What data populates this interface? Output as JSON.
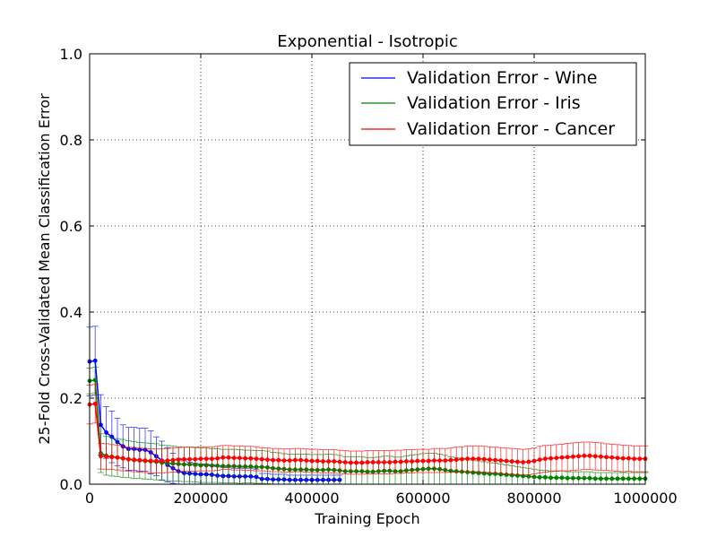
{
  "chart_data": {
    "type": "line",
    "title": "Exponential - Isotropic",
    "xlabel": "Training Epoch",
    "ylabel": "25-Fold Cross-Validated Mean Classification Error",
    "xlim": [
      0,
      1000000
    ],
    "ylim": [
      0.0,
      1.0
    ],
    "x_ticks": [
      "0",
      "200000",
      "400000",
      "600000",
      "800000",
      "1000000"
    ],
    "y_ticks": [
      "0.0",
      "0.2",
      "0.4",
      "0.6",
      "0.8",
      "1.0"
    ],
    "grid": true,
    "grid_style": "dotted",
    "legend_position": "top-right",
    "series": [
      {
        "name": "Validation Error - Wine",
        "color": "#0000ff",
        "x": [
          0,
          10000,
          20000,
          30000,
          40000,
          50000,
          60000,
          70000,
          80000,
          90000,
          100000,
          110000,
          120000,
          130000,
          140000,
          150000,
          160000,
          170000,
          180000,
          190000,
          200000,
          210000,
          220000,
          230000,
          240000,
          250000,
          260000,
          270000,
          280000,
          290000,
          300000,
          310000,
          320000,
          330000,
          340000,
          350000,
          360000,
          370000,
          380000,
          390000,
          400000,
          410000,
          420000,
          430000,
          440000,
          450000
        ],
        "y": [
          0.285,
          0.287,
          0.138,
          0.12,
          0.11,
          0.098,
          0.088,
          0.082,
          0.082,
          0.08,
          0.08,
          0.074,
          0.065,
          0.055,
          0.045,
          0.037,
          0.03,
          0.026,
          0.025,
          0.024,
          0.023,
          0.023,
          0.022,
          0.02,
          0.019,
          0.019,
          0.018,
          0.018,
          0.018,
          0.018,
          0.017,
          0.012,
          0.012,
          0.011,
          0.011,
          0.011,
          0.01,
          0.01,
          0.01,
          0.01,
          0.01,
          0.01,
          0.01,
          0.01,
          0.01,
          0.01
        ],
        "err": [
          0.08,
          0.08,
          0.07,
          0.06,
          0.06,
          0.055,
          0.05,
          0.05,
          0.05,
          0.05,
          0.05,
          0.05,
          0.045,
          0.045,
          0.04,
          0.035,
          0.03,
          0.028,
          0.026,
          0.025,
          0.024,
          0.024,
          0.023,
          0.021,
          0.02,
          0.02,
          0.019,
          0.019,
          0.019,
          0.019,
          0.018,
          0.013,
          0.013,
          0.012,
          0.012,
          0.012,
          0.011,
          0.011,
          0.011,
          0.011,
          0.011,
          0.011,
          0.011,
          0.011,
          0.011,
          0.011
        ]
      },
      {
        "name": "Validation Error - Iris",
        "color": "#008000",
        "x": [
          0,
          10000,
          20000,
          30000,
          40000,
          50000,
          60000,
          70000,
          80000,
          90000,
          100000,
          110000,
          120000,
          130000,
          140000,
          150000,
          160000,
          170000,
          180000,
          190000,
          200000,
          210000,
          220000,
          230000,
          240000,
          250000,
          260000,
          270000,
          280000,
          290000,
          300000,
          310000,
          320000,
          330000,
          340000,
          350000,
          360000,
          370000,
          380000,
          390000,
          400000,
          410000,
          420000,
          430000,
          440000,
          450000,
          460000,
          470000,
          480000,
          490000,
          500000,
          510000,
          520000,
          530000,
          540000,
          550000,
          560000,
          570000,
          580000,
          590000,
          600000,
          610000,
          620000,
          630000,
          640000,
          650000,
          660000,
          670000,
          680000,
          690000,
          700000,
          710000,
          720000,
          730000,
          740000,
          750000,
          760000,
          770000,
          780000,
          790000,
          800000,
          810000,
          820000,
          830000,
          840000,
          850000,
          860000,
          870000,
          880000,
          890000,
          900000,
          910000,
          920000,
          930000,
          940000,
          950000,
          960000,
          970000,
          980000,
          990000,
          1000000
        ],
        "y": [
          0.24,
          0.242,
          0.072,
          0.066,
          0.064,
          0.062,
          0.06,
          0.058,
          0.056,
          0.055,
          0.054,
          0.053,
          0.052,
          0.05,
          0.049,
          0.048,
          0.047,
          0.046,
          0.046,
          0.045,
          0.044,
          0.044,
          0.043,
          0.043,
          0.042,
          0.042,
          0.042,
          0.041,
          0.041,
          0.041,
          0.04,
          0.04,
          0.039,
          0.037,
          0.036,
          0.035,
          0.034,
          0.034,
          0.034,
          0.034,
          0.033,
          0.033,
          0.033,
          0.034,
          0.033,
          0.032,
          0.03,
          0.03,
          0.03,
          0.03,
          0.029,
          0.029,
          0.03,
          0.031,
          0.031,
          0.03,
          0.03,
          0.032,
          0.033,
          0.034,
          0.035,
          0.036,
          0.036,
          0.035,
          0.033,
          0.031,
          0.03,
          0.029,
          0.028,
          0.027,
          0.026,
          0.025,
          0.024,
          0.024,
          0.023,
          0.022,
          0.021,
          0.02,
          0.019,
          0.018,
          0.017,
          0.016,
          0.016,
          0.015,
          0.015,
          0.015,
          0.014,
          0.014,
          0.014,
          0.014,
          0.014,
          0.013,
          0.013,
          0.013,
          0.013,
          0.013,
          0.013,
          0.013,
          0.013,
          0.013,
          0.013
        ],
        "err": [
          0.03,
          0.03,
          0.045,
          0.045,
          0.045,
          0.044,
          0.044,
          0.043,
          0.043,
          0.042,
          0.042,
          0.042,
          0.042,
          0.041,
          0.041,
          0.041,
          0.04,
          0.04,
          0.04,
          0.04,
          0.04,
          0.04,
          0.039,
          0.039,
          0.039,
          0.039,
          0.039,
          0.039,
          0.038,
          0.038,
          0.038,
          0.038,
          0.038,
          0.037,
          0.037,
          0.036,
          0.036,
          0.036,
          0.036,
          0.036,
          0.036,
          0.036,
          0.036,
          0.036,
          0.036,
          0.035,
          0.034,
          0.034,
          0.034,
          0.034,
          0.033,
          0.033,
          0.033,
          0.034,
          0.034,
          0.033,
          0.033,
          0.034,
          0.035,
          0.035,
          0.036,
          0.036,
          0.036,
          0.035,
          0.034,
          0.033,
          0.032,
          0.031,
          0.03,
          0.029,
          0.028,
          0.027,
          0.026,
          0.025,
          0.024,
          0.023,
          0.022,
          0.021,
          0.02,
          0.019,
          0.018,
          0.017,
          0.016,
          0.016,
          0.016,
          0.016,
          0.015,
          0.015,
          0.015,
          0.015,
          0.015,
          0.014,
          0.014,
          0.014,
          0.014,
          0.014,
          0.014,
          0.014,
          0.014,
          0.014,
          0.014
        ]
      },
      {
        "name": "Validation Error - Cancer",
        "color": "#ff0000",
        "x": [
          0,
          10000,
          20000,
          30000,
          40000,
          50000,
          60000,
          70000,
          80000,
          90000,
          100000,
          110000,
          120000,
          130000,
          140000,
          150000,
          160000,
          170000,
          180000,
          190000,
          200000,
          210000,
          220000,
          230000,
          240000,
          250000,
          260000,
          270000,
          280000,
          290000,
          300000,
          310000,
          320000,
          330000,
          340000,
          350000,
          360000,
          370000,
          380000,
          390000,
          400000,
          410000,
          420000,
          430000,
          440000,
          450000,
          460000,
          470000,
          480000,
          490000,
          500000,
          510000,
          520000,
          530000,
          540000,
          550000,
          560000,
          570000,
          580000,
          590000,
          600000,
          610000,
          620000,
          630000,
          640000,
          650000,
          660000,
          670000,
          680000,
          690000,
          700000,
          710000,
          720000,
          730000,
          740000,
          750000,
          760000,
          770000,
          780000,
          790000,
          800000,
          810000,
          820000,
          830000,
          840000,
          850000,
          860000,
          870000,
          880000,
          890000,
          900000,
          910000,
          920000,
          930000,
          940000,
          950000,
          960000,
          970000,
          980000,
          990000,
          1000000
        ],
        "y": [
          0.185,
          0.187,
          0.065,
          0.064,
          0.063,
          0.062,
          0.06,
          0.058,
          0.057,
          0.056,
          0.055,
          0.054,
          0.054,
          0.054,
          0.055,
          0.056,
          0.057,
          0.058,
          0.058,
          0.058,
          0.059,
          0.059,
          0.059,
          0.06,
          0.062,
          0.062,
          0.061,
          0.061,
          0.06,
          0.06,
          0.059,
          0.058,
          0.057,
          0.056,
          0.056,
          0.055,
          0.055,
          0.056,
          0.056,
          0.055,
          0.054,
          0.054,
          0.053,
          0.053,
          0.053,
          0.052,
          0.051,
          0.05,
          0.05,
          0.05,
          0.051,
          0.051,
          0.051,
          0.051,
          0.051,
          0.052,
          0.052,
          0.053,
          0.053,
          0.054,
          0.054,
          0.054,
          0.055,
          0.055,
          0.055,
          0.056,
          0.057,
          0.058,
          0.059,
          0.059,
          0.059,
          0.058,
          0.057,
          0.056,
          0.055,
          0.054,
          0.053,
          0.052,
          0.051,
          0.052,
          0.054,
          0.057,
          0.059,
          0.06,
          0.061,
          0.062,
          0.063,
          0.064,
          0.065,
          0.066,
          0.066,
          0.065,
          0.064,
          0.063,
          0.062,
          0.061,
          0.06,
          0.06,
          0.059,
          0.059,
          0.059
        ],
        "err": [
          0.045,
          0.045,
          0.03,
          0.03,
          0.029,
          0.029,
          0.029,
          0.028,
          0.028,
          0.028,
          0.028,
          0.028,
          0.028,
          0.028,
          0.028,
          0.028,
          0.028,
          0.028,
          0.028,
          0.028,
          0.028,
          0.028,
          0.028,
          0.028,
          0.028,
          0.028,
          0.028,
          0.028,
          0.028,
          0.028,
          0.028,
          0.027,
          0.027,
          0.027,
          0.027,
          0.027,
          0.027,
          0.027,
          0.027,
          0.027,
          0.027,
          0.027,
          0.027,
          0.027,
          0.027,
          0.027,
          0.027,
          0.027,
          0.027,
          0.027,
          0.027,
          0.027,
          0.027,
          0.027,
          0.027,
          0.027,
          0.027,
          0.027,
          0.027,
          0.027,
          0.027,
          0.027,
          0.028,
          0.028,
          0.028,
          0.028,
          0.029,
          0.029,
          0.03,
          0.03,
          0.03,
          0.03,
          0.03,
          0.03,
          0.03,
          0.03,
          0.03,
          0.03,
          0.03,
          0.03,
          0.03,
          0.031,
          0.031,
          0.031,
          0.031,
          0.031,
          0.032,
          0.032,
          0.032,
          0.032,
          0.032,
          0.032,
          0.032,
          0.031,
          0.031,
          0.031,
          0.031,
          0.03,
          0.03,
          0.03,
          0.03
        ]
      }
    ]
  }
}
